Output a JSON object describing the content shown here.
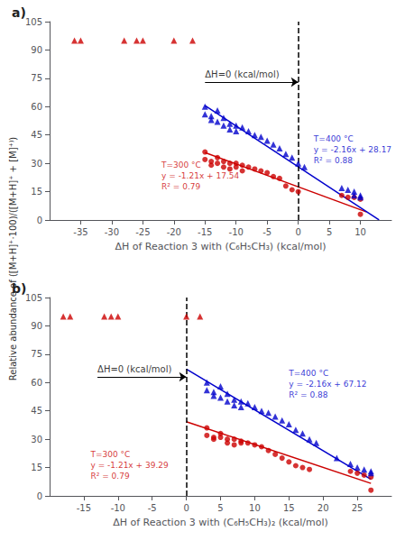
{
  "chart_data": [
    {
      "type": "scatter",
      "title": "a)",
      "x_label": "ΔH of Reaction 3 with (C₆H₅CH₃) (kcal/mol)",
      "y_label": "Relative abundance of ([M+H]⁺·100)/([M+H]⁺ + [M]⁺⁾)",
      "xlim": [
        -40,
        15
      ],
      "xticks": [
        -35,
        -30,
        -25,
        -20,
        -15,
        -10,
        -5,
        0,
        5,
        10
      ],
      "ylim": [
        0,
        105
      ],
      "yticks": [
        0,
        15,
        30,
        45,
        60,
        75,
        90,
        105
      ],
      "grid": false,
      "series": [
        {
          "type": "scatter",
          "marker": "circle",
          "color": "#cc0000",
          "x": [
            -15,
            -15,
            -14,
            -14,
            -13,
            -13,
            -12,
            -12,
            -11,
            -11,
            -10,
            -10,
            -9,
            -9,
            -8,
            -7,
            -6,
            -5,
            -4,
            -3,
            -2,
            -1,
            0,
            7,
            8,
            9,
            10,
            10
          ],
          "values": [
            36,
            32,
            31,
            29,
            33,
            30,
            31,
            28,
            30,
            27,
            30,
            28,
            29,
            26,
            28,
            27,
            26,
            25,
            23,
            22,
            18,
            16,
            15,
            13,
            12,
            12,
            11,
            3
          ]
        },
        {
          "type": "scatter",
          "marker": "triangle",
          "color": "#cc0000",
          "x": [
            -36,
            -35,
            -28,
            -26,
            -25,
            -20,
            -17
          ],
          "values": [
            95,
            95,
            95,
            95,
            95,
            95,
            95
          ]
        },
        {
          "type": "scatter",
          "marker": "triangle",
          "color": "#0000cc",
          "x": [
            -15,
            -15,
            -14,
            -14,
            -13,
            -13,
            -12,
            -12,
            -11,
            -11,
            -10,
            -10,
            -9,
            -8,
            -7,
            -6,
            -5,
            -4,
            -3,
            -2,
            -1,
            0,
            1,
            7,
            8,
            9,
            9,
            10,
            10
          ],
          "values": [
            60,
            56,
            55,
            53,
            58,
            52,
            54,
            50,
            51,
            48,
            50,
            47,
            49,
            47,
            45,
            44,
            42,
            40,
            38,
            35,
            33,
            30,
            28,
            17,
            16,
            15,
            13,
            13,
            12
          ]
        },
        {
          "type": "line",
          "color": "#cc0000",
          "x": [
            -15,
            11
          ],
          "values": [
            35.69,
            4.23
          ]
        },
        {
          "type": "line",
          "color": "#0000cc",
          "x": [
            -15,
            13
          ],
          "values": [
            60.57,
            0.09
          ]
        },
        {
          "type": "vline",
          "color": "#000000",
          "line_style": "dashed",
          "x": 0
        }
      ],
      "annotations": [
        {
          "text": "ΔH=0 (kcal/mol)",
          "xy": [
            0,
            73
          ],
          "xytext": [
            -15,
            73
          ],
          "color": "#000000"
        },
        {
          "text": "T=300 °C\ny = -1.21x + 17.54\nR² = 0.79",
          "xy": [
            -22,
            32
          ],
          "color": "#cc0000"
        },
        {
          "text": "T=400 °C\ny = -2.16x + 28.17\nR² = 0.88",
          "xy": [
            2.5,
            46
          ],
          "color": "#0000cc"
        }
      ]
    },
    {
      "type": "scatter",
      "title": "b)",
      "x_label": "ΔH of Reaction 3 with (C₆H₅CH₃)₂ (kcal/mol)",
      "xlim": [
        -20,
        30
      ],
      "xticks": [
        -15,
        -10,
        -5,
        0,
        5,
        10,
        15,
        20,
        25
      ],
      "ylim": [
        0,
        105
      ],
      "yticks": [
        0,
        15,
        30,
        45,
        60,
        75,
        90,
        105
      ],
      "grid": false,
      "series": [
        {
          "type": "scatter",
          "marker": "circle",
          "color": "#cc0000",
          "x": [
            3,
            3,
            4,
            4,
            5,
            5,
            6,
            6,
            7,
            7,
            8,
            8,
            9,
            10,
            11,
            12,
            13,
            14,
            15,
            16,
            17,
            18,
            24,
            25,
            26,
            27,
            27
          ],
          "values": [
            36,
            32,
            31,
            30,
            33,
            31,
            30,
            28,
            30,
            27,
            29,
            28,
            28,
            27,
            26,
            24,
            22,
            20,
            18,
            16,
            15,
            14,
            13,
            12,
            11,
            10,
            3
          ]
        },
        {
          "type": "scatter",
          "marker": "triangle",
          "color": "#cc0000",
          "x": [
            -18,
            -17,
            -12,
            -11,
            -10,
            0,
            2
          ],
          "values": [
            95,
            95,
            95,
            95,
            95,
            95,
            95
          ]
        },
        {
          "type": "scatter",
          "marker": "triangle",
          "color": "#0000cc",
          "x": [
            3,
            3,
            4,
            4,
            5,
            5,
            6,
            6,
            7,
            7,
            8,
            8,
            9,
            10,
            11,
            12,
            13,
            14,
            15,
            16,
            17,
            18,
            19,
            22,
            24,
            25,
            26,
            27,
            27
          ],
          "values": [
            60,
            56,
            55,
            53,
            58,
            52,
            54,
            50,
            51,
            48,
            50,
            47,
            49,
            47,
            45,
            44,
            42,
            40,
            38,
            35,
            33,
            30,
            28,
            20,
            17,
            15,
            14,
            13,
            12
          ]
        },
        {
          "type": "line",
          "color": "#cc0000",
          "x": [
            0,
            27
          ],
          "values": [
            39.29,
            6.62
          ]
        },
        {
          "type": "line",
          "color": "#0000cc",
          "x": [
            0,
            27
          ],
          "values": [
            67.12,
            8.8
          ]
        },
        {
          "type": "vline",
          "color": "#000000",
          "line_style": "dashed",
          "x": 0
        }
      ],
      "annotations": [
        {
          "text": "ΔH=0 (kcal/mol)",
          "xy": [
            0,
            63
          ],
          "xytext": [
            -13,
            63
          ],
          "color": "#000000"
        },
        {
          "text": "T=300 °C\ny = -1.21x + 39.29\nR² = 0.79",
          "xy": [
            -14,
            25
          ],
          "color": "#cc0000"
        },
        {
          "text": "T=400 °C\ny = -2.16x + 67.12\nR² = 0.88",
          "xy": [
            15,
            68
          ],
          "color": "#0000cc"
        }
      ]
    }
  ]
}
